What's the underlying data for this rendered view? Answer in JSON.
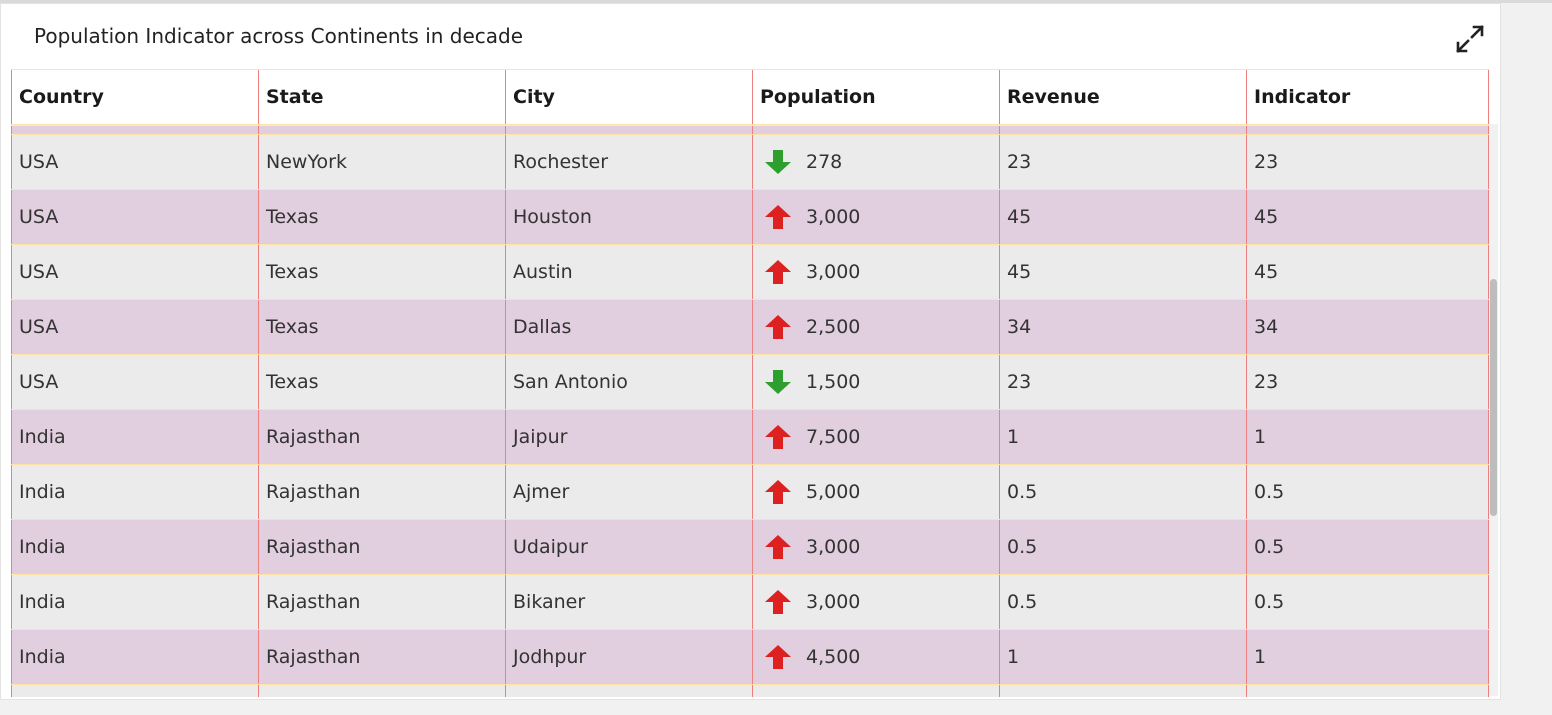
{
  "title": "Population Indicator across Continents in decade",
  "expand_icon": "expand-icon",
  "colors": {
    "up": "#dd2020",
    "down": "#2e9e2e",
    "row_alt": "#e1cedf",
    "row": "#ebebeb"
  },
  "table": {
    "columns": [
      "Country",
      "State",
      "City",
      "Population",
      "Revenue",
      "Indicator"
    ],
    "rows": [
      {
        "country": "USA",
        "state": "NewYork",
        "city": "Rochester",
        "trend": "down",
        "population": "278",
        "revenue": "23",
        "indicator": "23"
      },
      {
        "country": "USA",
        "state": "Texas",
        "city": "Houston",
        "trend": "up",
        "population": "3,000",
        "revenue": "45",
        "indicator": "45"
      },
      {
        "country": "USA",
        "state": "Texas",
        "city": "Austin",
        "trend": "up",
        "population": "3,000",
        "revenue": "45",
        "indicator": "45"
      },
      {
        "country": "USA",
        "state": "Texas",
        "city": "Dallas",
        "trend": "up",
        "population": "2,500",
        "revenue": "34",
        "indicator": "34"
      },
      {
        "country": "USA",
        "state": "Texas",
        "city": "San Antonio",
        "trend": "down",
        "population": "1,500",
        "revenue": "23",
        "indicator": "23"
      },
      {
        "country": "India",
        "state": "Rajasthan",
        "city": "Jaipur",
        "trend": "up",
        "population": "7,500",
        "revenue": "1",
        "indicator": "1"
      },
      {
        "country": "India",
        "state": "Rajasthan",
        "city": "Ajmer",
        "trend": "up",
        "population": "5,000",
        "revenue": "0.5",
        "indicator": "0.5"
      },
      {
        "country": "India",
        "state": "Rajasthan",
        "city": "Udaipur",
        "trend": "up",
        "population": "3,000",
        "revenue": "0.5",
        "indicator": "0.5"
      },
      {
        "country": "India",
        "state": "Rajasthan",
        "city": "Bikaner",
        "trend": "up",
        "population": "3,000",
        "revenue": "0.5",
        "indicator": "0.5"
      },
      {
        "country": "India",
        "state": "Rajasthan",
        "city": "Jodhpur",
        "trend": "up",
        "population": "4,500",
        "revenue": "1",
        "indicator": "1"
      }
    ]
  }
}
